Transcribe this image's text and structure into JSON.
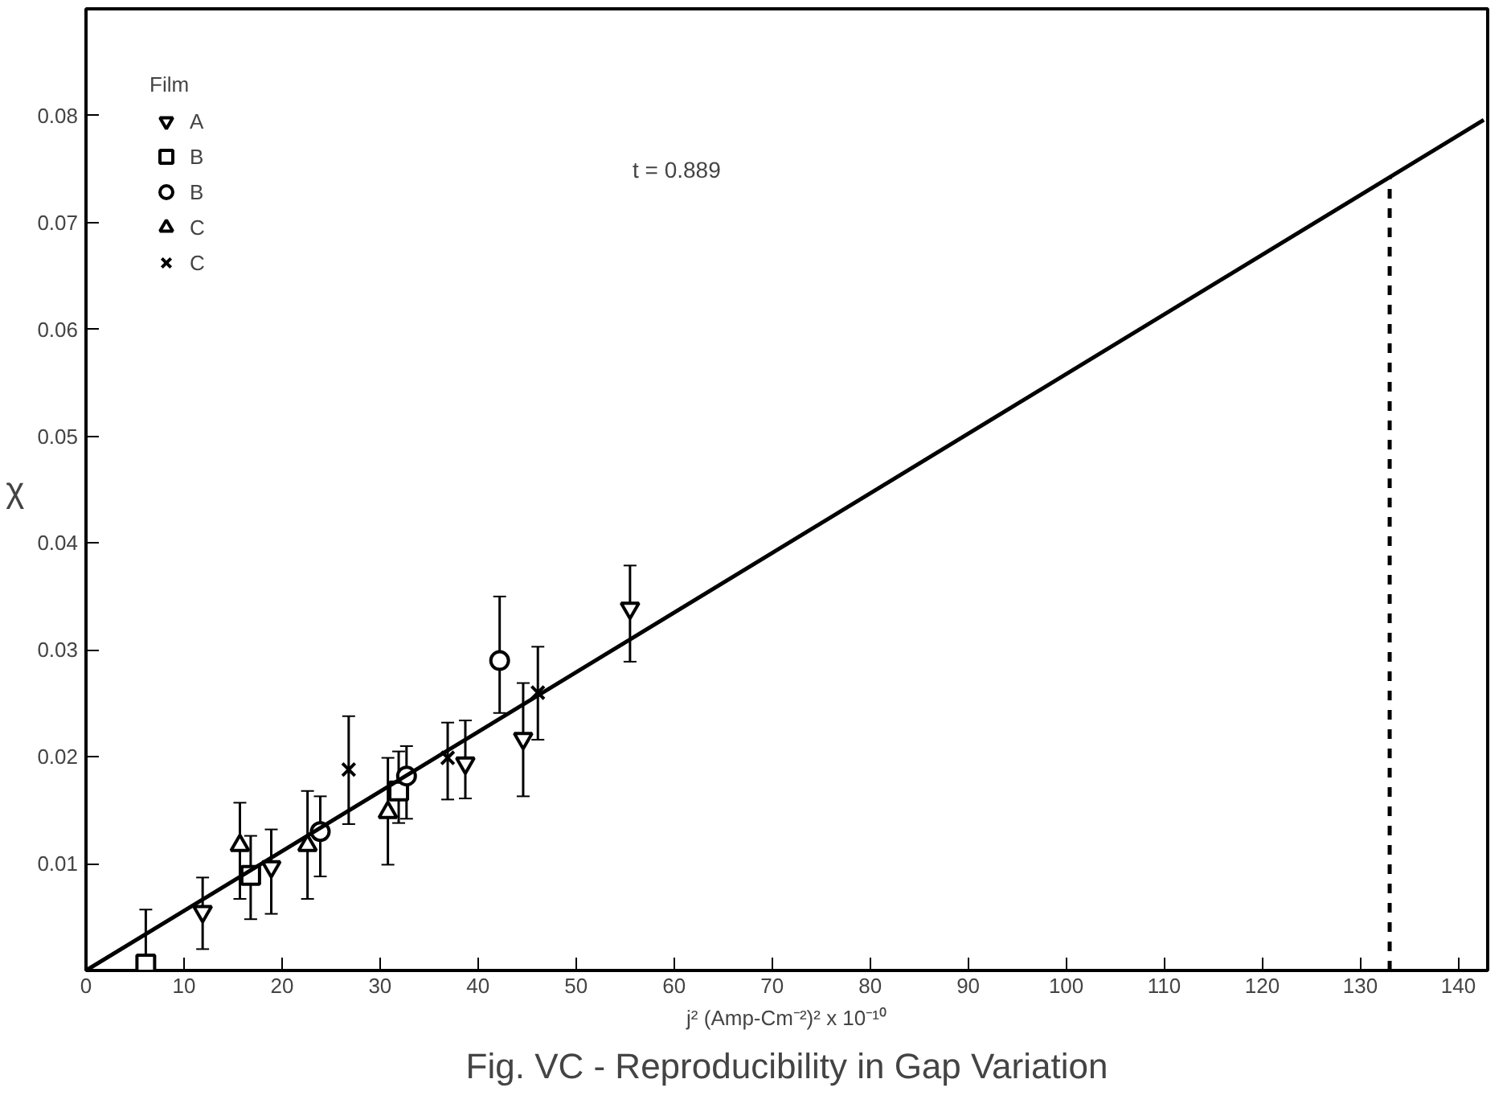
{
  "chart_data": {
    "type": "scatter",
    "title": "Fig. VC - Reproducibility in Gap Variation",
    "xlabel": "j² (Amp-Cm⁻²)² x 10⁻¹⁰",
    "ylabel": "χ",
    "legend_title": "Film",
    "annotations": [
      "t = 0.889"
    ],
    "xlim": [
      0,
      143
    ],
    "ylim": [
      0,
      0.09
    ],
    "xticks": [
      0,
      10,
      20,
      30,
      40,
      50,
      60,
      70,
      80,
      90,
      100,
      110,
      120,
      130,
      140
    ],
    "yticks": [
      {
        "value": 0,
        "label": null
      },
      0.01,
      0.02,
      0.03,
      0.04,
      0.05,
      0.06,
      0.07,
      0.08
    ],
    "grid": false,
    "legend": "top left",
    "series": [
      {
        "name": "A",
        "color": "#000000",
        "marker": "triangle_down",
        "x": [
          11.9,
          18.9,
          38.7,
          44.6,
          55.5
        ],
        "values": [
          0.0055,
          0.0097,
          0.0194,
          0.0217,
          0.0339
        ],
        "errors": [
          [
            0.002,
            0.0087
          ],
          [
            0.0053,
            0.0132
          ],
          [
            0.0161,
            0.0234
          ],
          [
            0.0163,
            0.0269
          ],
          [
            0.0289,
            0.0379
          ]
        ]
      },
      {
        "name": "B",
        "color": "#000000",
        "marker": "square",
        "x": [
          6.1,
          16.8,
          31.9
        ],
        "values": [
          0.0006,
          0.0089,
          0.0168
        ],
        "errors": [
          [
            0.0006,
            0.0057
          ],
          [
            0.0048,
            0.0126
          ],
          [
            0.0138,
            0.0205
          ]
        ]
      },
      {
        "name": "B",
        "color": "#000000",
        "marker": "circle",
        "x": [
          23.9,
          32.7,
          42.2
        ],
        "values": [
          0.013,
          0.0182,
          0.029
        ],
        "errors": [
          [
            0.0088,
            0.0163
          ],
          [
            0.0142,
            0.021
          ],
          [
            0.0241,
            0.035
          ]
        ]
      },
      {
        "name": "C",
        "color": "#000000",
        "marker": "triangle",
        "x": [
          15.7,
          22.6,
          30.8
        ],
        "values": [
          0.0117,
          0.0117,
          0.0148
        ],
        "errors": [
          [
            0.0067,
            0.0157
          ],
          [
            0.0067,
            0.0168
          ],
          [
            0.0099,
            0.0199
          ]
        ]
      },
      {
        "name": "C",
        "color": "#000000",
        "marker": "cross",
        "x": [
          26.8,
          36.9,
          46.1
        ],
        "values": [
          0.0188,
          0.0199,
          0.026
        ],
        "errors": [
          [
            0.0137,
            0.0238
          ],
          [
            0.016,
            0.0232
          ],
          [
            0.0216,
            0.0303
          ]
        ]
      },
      {
        "type": "line",
        "color": "#000000",
        "line_style": "solid",
        "marker": "none",
        "x": [
          0,
          142.6
        ],
        "values": [
          0,
          0.0796
        ]
      },
      {
        "type": "line",
        "color": "#000000",
        "line_style": "dashed",
        "marker": "none",
        "x": [
          133,
          133
        ],
        "values": [
          0,
          0.0742
        ]
      }
    ]
  }
}
